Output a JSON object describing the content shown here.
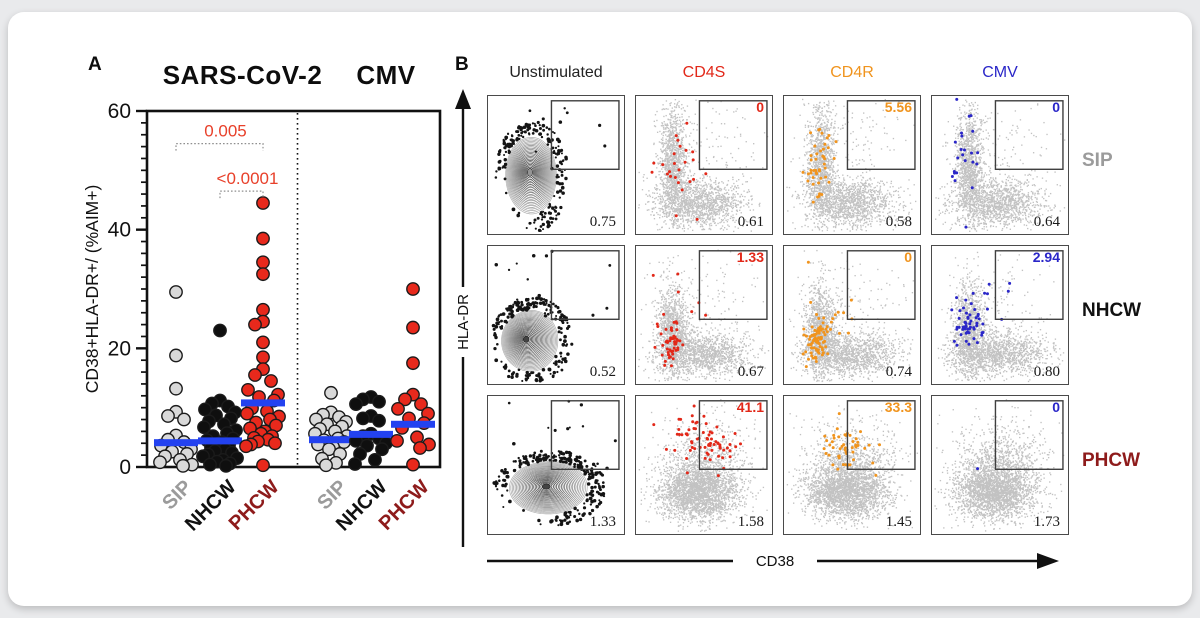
{
  "panelA": {
    "label": "A"
  },
  "panelB": {
    "label": "B"
  },
  "colors": {
    "red": "#e22819",
    "orange": "#f0941e",
    "blue": "#2a26c8",
    "gray_cohort": "#9b9b9b",
    "black": "#111111",
    "dark_red": "#8e1b1b",
    "median_bar": "#2342f0",
    "p_value_text": "#e8402a",
    "dot_gray": "#d9d9d9",
    "scatter_gray": "#c2c2c2"
  },
  "chart_data": [
    {
      "id": "panel-a-dot-plot",
      "type": "scatter",
      "title_groups": [
        "SARS-CoV-2",
        "CMV"
      ],
      "ylabel": "CD38+HLA-DR+/ (%AIM+)",
      "ylim": [
        0,
        60
      ],
      "yticks": [
        0,
        20,
        40,
        60
      ],
      "minor_tick_step": 2,
      "pvalues": [
        {
          "label": "0.005",
          "from": 0,
          "to": 2,
          "y": 54.5
        },
        {
          "label": "<0.0001",
          "from": 1,
          "to": 2,
          "y": 46.5
        }
      ],
      "groups": [
        {
          "stimulus": "SARS-CoV-2",
          "cohort": "SIP",
          "dot_color": "#d9d9d9",
          "label_color": "#9b9b9b",
          "median": 4.1,
          "values": [
            29.5,
            18.8,
            13.2,
            9.3,
            8.6,
            8.0,
            5.3,
            4.6,
            4.2,
            3.6,
            3.0,
            2.6,
            2.2,
            1.8,
            1.2,
            0.8,
            0.4,
            0.2
          ]
        },
        {
          "stimulus": "SARS-CoV-2",
          "cohort": "NHCW",
          "dot_color": "#0f0f0f",
          "label_color": "#111111",
          "median": 4.4,
          "values": [
            23.0,
            11.2,
            10.7,
            10.2,
            9.7,
            9.2,
            8.7,
            8.2,
            7.7,
            7.2,
            6.7,
            6.2,
            5.7,
            5.2,
            4.8,
            4.5,
            4.2,
            3.9,
            3.6,
            3.3,
            3.0,
            2.7,
            2.4,
            2.1,
            1.8,
            1.5,
            1.2,
            0.9,
            0.6,
            0.4,
            0.2
          ]
        },
        {
          "stimulus": "SARS-CoV-2",
          "cohort": "PHCW",
          "dot_color": "#e8291c",
          "label_color": "#8e1b1b",
          "median": 10.8,
          "values": [
            44.5,
            38.5,
            34.5,
            32.5,
            26.5,
            24.5,
            24.0,
            21.0,
            18.5,
            16.5,
            15.5,
            14.5,
            13.0,
            12.2,
            11.8,
            11.2,
            9.9,
            9.4,
            9.0,
            8.5,
            8.0,
            7.5,
            7.0,
            6.5,
            6.0,
            5.6,
            5.2,
            4.9,
            4.6,
            4.3,
            4.0,
            3.8,
            3.5,
            0.3
          ]
        },
        {
          "stimulus": "CMV",
          "cohort": "SIP",
          "dot_color": "#d9d9d9",
          "label_color": "#9b9b9b",
          "median": 4.6,
          "values": [
            12.5,
            9.2,
            8.8,
            8.4,
            8.0,
            7.6,
            7.2,
            6.8,
            6.4,
            6.0,
            5.6,
            5.2,
            4.8,
            4.5,
            4.2,
            3.8,
            3.4,
            3.0,
            2.2,
            1.4,
            0.7,
            0.3
          ]
        },
        {
          "stimulus": "CMV",
          "cohort": "NHCW",
          "dot_color": "#0f0f0f",
          "label_color": "#111111",
          "median": 5.5,
          "values": [
            11.8,
            11.4,
            11.0,
            10.6,
            8.6,
            8.2,
            7.8,
            5.6,
            5.2,
            4.8,
            4.4,
            4.0,
            3.6,
            3.0,
            2.2,
            1.2,
            0.5
          ]
        },
        {
          "stimulus": "CMV",
          "cohort": "PHCW",
          "dot_color": "#e8291c",
          "label_color": "#8e1b1b",
          "median": 7.2,
          "values": [
            30.0,
            23.5,
            17.5,
            12.2,
            11.4,
            10.6,
            9.8,
            9.0,
            8.2,
            7.4,
            6.6,
            5.0,
            4.4,
            3.8,
            3.2,
            0.4
          ]
        }
      ]
    },
    {
      "id": "panel-b-flow-cytometry",
      "type": "scatter",
      "description": "Flow cytometry dot plots, HLA-DR vs CD38, gate percentages shown",
      "xaxis": "CD38",
      "yaxis": "HLA-DR",
      "columns": [
        {
          "label": "Unstimulated",
          "color": "#222222"
        },
        {
          "label": "CD4S",
          "color": "#e22819"
        },
        {
          "label": "CD4R",
          "color": "#f0941e"
        },
        {
          "label": "CMV",
          "color": "#2a26c8"
        }
      ],
      "rows": [
        {
          "label": "SIP",
          "color": "#9b9b9b"
        },
        {
          "label": "NHCW",
          "color": "#111111"
        },
        {
          "label": "PHCW",
          "color": "#8e1b1b"
        }
      ],
      "cells": [
        [
          {
            "gate": null,
            "lower": "0.75"
          },
          {
            "gate": "0",
            "lower": "0.61"
          },
          {
            "gate": "5.56",
            "lower": "0.58"
          },
          {
            "gate": "0",
            "lower": "0.64"
          }
        ],
        [
          {
            "gate": null,
            "lower": "0.52"
          },
          {
            "gate": "1.33",
            "lower": "0.67"
          },
          {
            "gate": "0",
            "lower": "0.74"
          },
          {
            "gate": "2.94",
            "lower": "0.80"
          }
        ],
        [
          {
            "gate": null,
            "lower": "1.33"
          },
          {
            "gate": "41.1",
            "lower": "1.58"
          },
          {
            "gate": "33.3",
            "lower": "1.45"
          },
          {
            "gate": "0",
            "lower": "1.73"
          }
        ]
      ]
    }
  ]
}
